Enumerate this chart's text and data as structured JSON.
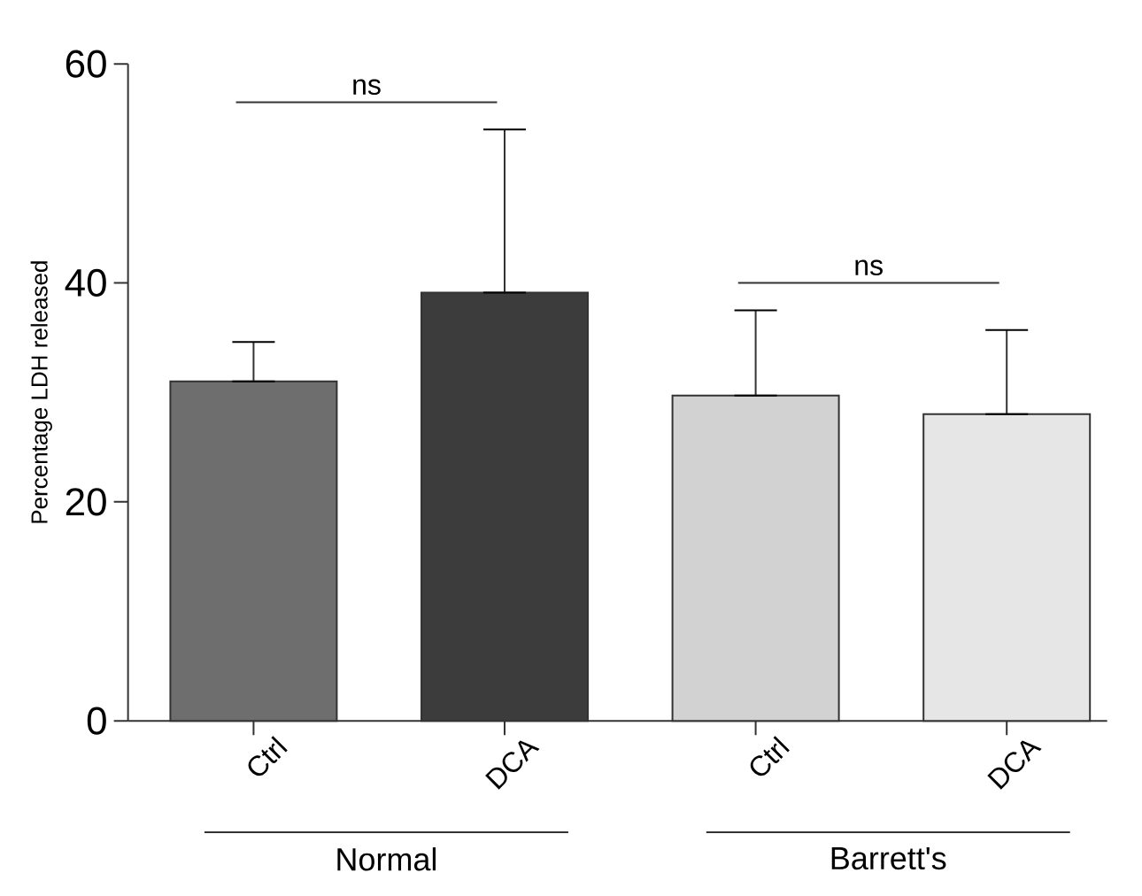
{
  "chart_data": {
    "type": "bar",
    "ylabel": "Percentage LDH released",
    "categories": [
      "Ctrl",
      "DCA",
      "Ctrl",
      "DCA"
    ],
    "values": [
      31.0,
      39.1,
      29.7,
      28.0
    ],
    "errors": [
      [
        31.0,
        34.6
      ],
      [
        39.1,
        54.0
      ],
      [
        29.7,
        37.5
      ],
      [
        28.0,
        35.7
      ]
    ],
    "colors": [
      "#6e6e6e",
      "#3c3c3c",
      "#d2d2d2",
      "#e6e6e6"
    ],
    "ylim": [
      0,
      60
    ],
    "yticks": [
      0,
      20,
      40,
      60
    ],
    "grid": false,
    "annotations": [
      "ns",
      "ns",
      "Normal",
      "Barrett's"
    ]
  }
}
